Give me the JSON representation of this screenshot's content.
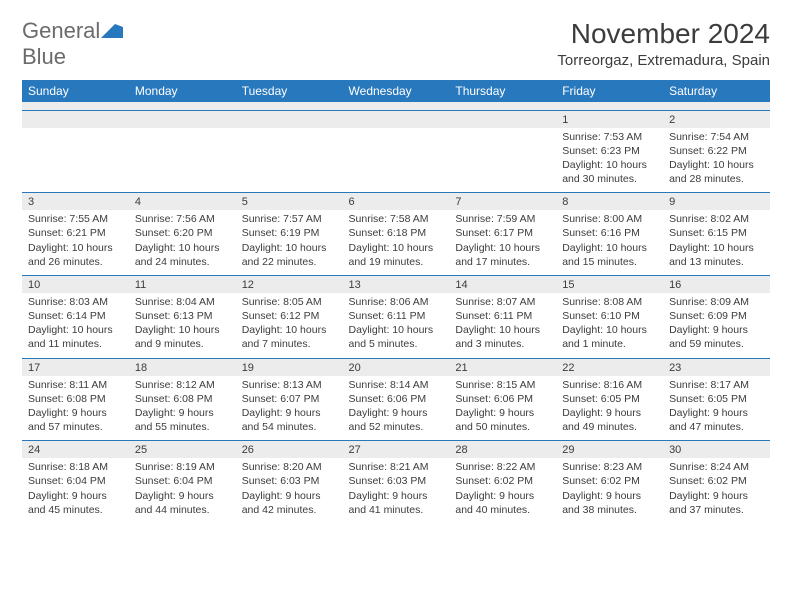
{
  "logo": {
    "text_gray": "General",
    "text_blue": "Blue"
  },
  "header": {
    "month_title": "November 2024",
    "location": "Torreorgaz, Extremadura, Spain"
  },
  "colors": {
    "header_bg": "#2878bd",
    "header_text": "#ffffff",
    "daynum_bg": "#ececec",
    "body_text": "#3c3c3c",
    "logo_gray": "#6b6b6b",
    "logo_blue": "#2878bd",
    "rule": "#2878bd"
  },
  "day_headers": [
    "Sunday",
    "Monday",
    "Tuesday",
    "Wednesday",
    "Thursday",
    "Friday",
    "Saturday"
  ],
  "weeks": [
    {
      "nums": [
        "",
        "",
        "",
        "",
        "",
        "1",
        "2"
      ],
      "data": [
        "",
        "",
        "",
        "",
        "",
        "Sunrise: 7:53 AM\nSunset: 6:23 PM\nDaylight: 10 hours and 30 minutes.",
        "Sunrise: 7:54 AM\nSunset: 6:22 PM\nDaylight: 10 hours and 28 minutes."
      ]
    },
    {
      "nums": [
        "3",
        "4",
        "5",
        "6",
        "7",
        "8",
        "9"
      ],
      "data": [
        "Sunrise: 7:55 AM\nSunset: 6:21 PM\nDaylight: 10 hours and 26 minutes.",
        "Sunrise: 7:56 AM\nSunset: 6:20 PM\nDaylight: 10 hours and 24 minutes.",
        "Sunrise: 7:57 AM\nSunset: 6:19 PM\nDaylight: 10 hours and 22 minutes.",
        "Sunrise: 7:58 AM\nSunset: 6:18 PM\nDaylight: 10 hours and 19 minutes.",
        "Sunrise: 7:59 AM\nSunset: 6:17 PM\nDaylight: 10 hours and 17 minutes.",
        "Sunrise: 8:00 AM\nSunset: 6:16 PM\nDaylight: 10 hours and 15 minutes.",
        "Sunrise: 8:02 AM\nSunset: 6:15 PM\nDaylight: 10 hours and 13 minutes."
      ]
    },
    {
      "nums": [
        "10",
        "11",
        "12",
        "13",
        "14",
        "15",
        "16"
      ],
      "data": [
        "Sunrise: 8:03 AM\nSunset: 6:14 PM\nDaylight: 10 hours and 11 minutes.",
        "Sunrise: 8:04 AM\nSunset: 6:13 PM\nDaylight: 10 hours and 9 minutes.",
        "Sunrise: 8:05 AM\nSunset: 6:12 PM\nDaylight: 10 hours and 7 minutes.",
        "Sunrise: 8:06 AM\nSunset: 6:11 PM\nDaylight: 10 hours and 5 minutes.",
        "Sunrise: 8:07 AM\nSunset: 6:11 PM\nDaylight: 10 hours and 3 minutes.",
        "Sunrise: 8:08 AM\nSunset: 6:10 PM\nDaylight: 10 hours and 1 minute.",
        "Sunrise: 8:09 AM\nSunset: 6:09 PM\nDaylight: 9 hours and 59 minutes."
      ]
    },
    {
      "nums": [
        "17",
        "18",
        "19",
        "20",
        "21",
        "22",
        "23"
      ],
      "data": [
        "Sunrise: 8:11 AM\nSunset: 6:08 PM\nDaylight: 9 hours and 57 minutes.",
        "Sunrise: 8:12 AM\nSunset: 6:08 PM\nDaylight: 9 hours and 55 minutes.",
        "Sunrise: 8:13 AM\nSunset: 6:07 PM\nDaylight: 9 hours and 54 minutes.",
        "Sunrise: 8:14 AM\nSunset: 6:06 PM\nDaylight: 9 hours and 52 minutes.",
        "Sunrise: 8:15 AM\nSunset: 6:06 PM\nDaylight: 9 hours and 50 minutes.",
        "Sunrise: 8:16 AM\nSunset: 6:05 PM\nDaylight: 9 hours and 49 minutes.",
        "Sunrise: 8:17 AM\nSunset: 6:05 PM\nDaylight: 9 hours and 47 minutes."
      ]
    },
    {
      "nums": [
        "24",
        "25",
        "26",
        "27",
        "28",
        "29",
        "30"
      ],
      "data": [
        "Sunrise: 8:18 AM\nSunset: 6:04 PM\nDaylight: 9 hours and 45 minutes.",
        "Sunrise: 8:19 AM\nSunset: 6:04 PM\nDaylight: 9 hours and 44 minutes.",
        "Sunrise: 8:20 AM\nSunset: 6:03 PM\nDaylight: 9 hours and 42 minutes.",
        "Sunrise: 8:21 AM\nSunset: 6:03 PM\nDaylight: 9 hours and 41 minutes.",
        "Sunrise: 8:22 AM\nSunset: 6:02 PM\nDaylight: 9 hours and 40 minutes.",
        "Sunrise: 8:23 AM\nSunset: 6:02 PM\nDaylight: 9 hours and 38 minutes.",
        "Sunrise: 8:24 AM\nSunset: 6:02 PM\nDaylight: 9 hours and 37 minutes."
      ]
    }
  ]
}
